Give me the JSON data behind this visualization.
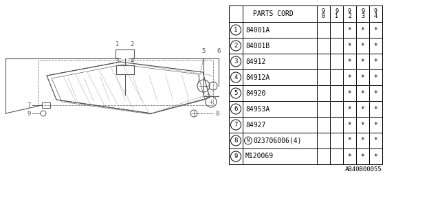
{
  "bg_color": "#ffffff",
  "header_label": "PARTS CORD",
  "year_cols": [
    "9\n0",
    "9\n1",
    "9\n2",
    "9\n3",
    "9\n4"
  ],
  "rows": [
    {
      "num": "1",
      "code": "84001A",
      "marks": [
        " ",
        " ",
        "*",
        "*",
        "*"
      ]
    },
    {
      "num": "2",
      "code": "84001B",
      "marks": [
        " ",
        " ",
        "*",
        "*",
        "*"
      ]
    },
    {
      "num": "3",
      "code": "84912",
      "marks": [
        " ",
        " ",
        "*",
        "*",
        "*"
      ]
    },
    {
      "num": "4",
      "code": "84912A",
      "marks": [
        " ",
        " ",
        "*",
        "*",
        "*"
      ]
    },
    {
      "num": "5",
      "code": "84920",
      "marks": [
        " ",
        " ",
        "*",
        "*",
        "*"
      ]
    },
    {
      "num": "6",
      "code": "84953A",
      "marks": [
        " ",
        " ",
        "*",
        "*",
        "*"
      ]
    },
    {
      "num": "7",
      "code": "84927",
      "marks": [
        " ",
        " ",
        "*",
        "*",
        "*"
      ]
    },
    {
      "num": "8",
      "code": "N023706006(4)",
      "marks": [
        " ",
        " ",
        "*",
        "*",
        "*"
      ]
    },
    {
      "num": "9",
      "code": "M120069",
      "marks": [
        " ",
        " ",
        "*",
        "*",
        "*"
      ]
    }
  ],
  "footnote": "AB40B00055",
  "line_color": "#000000",
  "text_color": "#000000",
  "diagram_color": "#555555",
  "font_size_table": 7.0,
  "font_size_footnote": 6.5,
  "font_size_diagram": 6.5
}
